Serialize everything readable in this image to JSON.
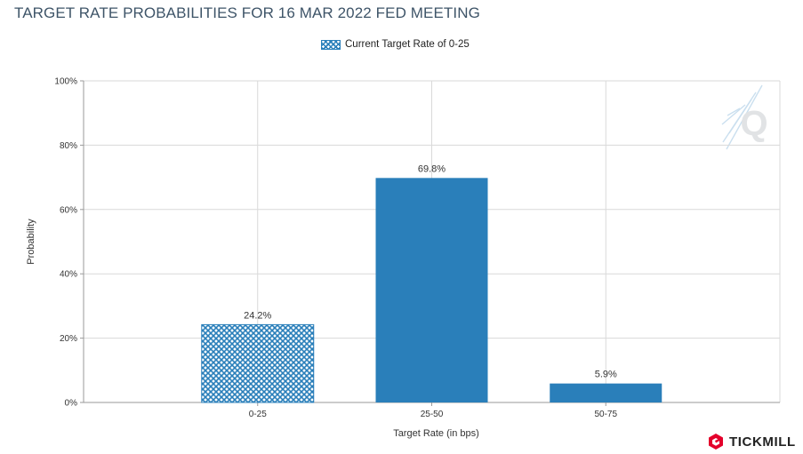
{
  "chart_data": {
    "type": "bar",
    "title": "TARGET RATE PROBABILITIES FOR 16 MAR 2022 FED MEETING",
    "xlabel": "Target Rate (in bps)",
    "ylabel": "Probability",
    "categories": [
      "0-25",
      "25-50",
      "50-75"
    ],
    "values": [
      24.2,
      69.8,
      5.9
    ],
    "value_labels": [
      "24.2%",
      "69.8%",
      "5.9%"
    ],
    "ylim": [
      0,
      100
    ],
    "yticks": [
      0,
      20,
      40,
      60,
      80,
      100
    ],
    "ytick_labels": [
      "0%",
      "20%",
      "40%",
      "60%",
      "80%",
      "100%"
    ],
    "grid": true,
    "legend": {
      "placement": "top-center",
      "entries": [
        "Current Target Rate of 0-25"
      ]
    },
    "highlighted_category": "0-25",
    "colors": {
      "bar": "#2a7fba",
      "grid": "#d9d9d9",
      "axis": "#9a9a9a"
    }
  },
  "watermark": {
    "icon": "q-watermark-icon"
  },
  "brand": {
    "name": "TICKMILL",
    "icon": "tickmill-logo-icon"
  }
}
